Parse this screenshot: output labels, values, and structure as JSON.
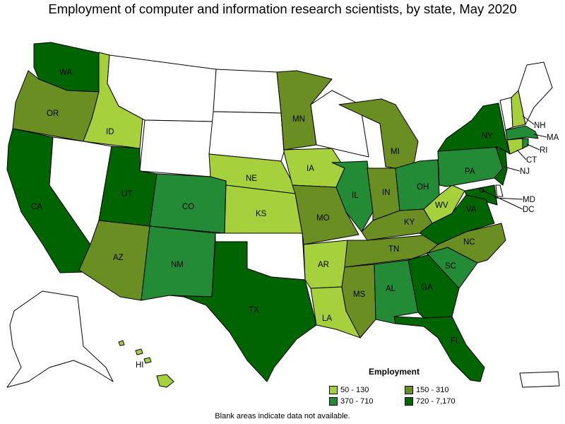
{
  "title": "Employment of computer and information research scientists, by state, May 2020",
  "note": "Blank areas indicate data not available.",
  "legend": {
    "title": "Employment",
    "items": [
      {
        "label": "50 - 130",
        "color": "#a6d13c"
      },
      {
        "label": "150 - 310",
        "color": "#6b8e23"
      },
      {
        "label": "370 - 710",
        "color": "#238b35"
      },
      {
        "label": "720 - 7,170",
        "color": "#006400"
      }
    ]
  },
  "colors": {
    "none": "#ffffff",
    "low": "#a6d13c",
    "midlow": "#6b8e23",
    "midhigh": "#238b35",
    "high": "#006400"
  },
  "states": [
    {
      "abbr": "WA",
      "bin": "high"
    },
    {
      "abbr": "OR",
      "bin": "midlow"
    },
    {
      "abbr": "CA",
      "bin": "high"
    },
    {
      "abbr": "ID",
      "bin": "low"
    },
    {
      "abbr": "NV",
      "bin": "none"
    },
    {
      "abbr": "MT",
      "bin": "none"
    },
    {
      "abbr": "WY",
      "bin": "none"
    },
    {
      "abbr": "UT",
      "bin": "high"
    },
    {
      "abbr": "AZ",
      "bin": "midlow"
    },
    {
      "abbr": "CO",
      "bin": "midhigh"
    },
    {
      "abbr": "NM",
      "bin": "midhigh"
    },
    {
      "abbr": "ND",
      "bin": "none"
    },
    {
      "abbr": "SD",
      "bin": "none"
    },
    {
      "abbr": "NE",
      "bin": "low"
    },
    {
      "abbr": "KS",
      "bin": "low"
    },
    {
      "abbr": "OK",
      "bin": "none"
    },
    {
      "abbr": "TX",
      "bin": "high"
    },
    {
      "abbr": "MN",
      "bin": "midlow"
    },
    {
      "abbr": "IA",
      "bin": "low"
    },
    {
      "abbr": "MO",
      "bin": "midlow"
    },
    {
      "abbr": "AR",
      "bin": "low"
    },
    {
      "abbr": "LA",
      "bin": "low"
    },
    {
      "abbr": "WI",
      "bin": "none"
    },
    {
      "abbr": "IL",
      "bin": "midhigh"
    },
    {
      "abbr": "MI",
      "bin": "midlow"
    },
    {
      "abbr": "IN",
      "bin": "midlow"
    },
    {
      "abbr": "OH",
      "bin": "midhigh"
    },
    {
      "abbr": "KY",
      "bin": "midlow"
    },
    {
      "abbr": "TN",
      "bin": "midlow"
    },
    {
      "abbr": "MS",
      "bin": "midlow"
    },
    {
      "abbr": "AL",
      "bin": "midhigh"
    },
    {
      "abbr": "GA",
      "bin": "high"
    },
    {
      "abbr": "FL",
      "bin": "high"
    },
    {
      "abbr": "SC",
      "bin": "midhigh"
    },
    {
      "abbr": "NC",
      "bin": "midlow"
    },
    {
      "abbr": "VA",
      "bin": "high"
    },
    {
      "abbr": "WV",
      "bin": "low"
    },
    {
      "abbr": "PA",
      "bin": "midhigh"
    },
    {
      "abbr": "NY",
      "bin": "high"
    },
    {
      "abbr": "VT",
      "bin": "none"
    },
    {
      "abbr": "NH",
      "bin": "low"
    },
    {
      "abbr": "ME",
      "bin": "none"
    },
    {
      "abbr": "MA",
      "bin": "midhigh"
    },
    {
      "abbr": "RI",
      "bin": "midhigh"
    },
    {
      "abbr": "CT",
      "bin": "low"
    },
    {
      "abbr": "NJ",
      "bin": "high"
    },
    {
      "abbr": "DE",
      "bin": "none"
    },
    {
      "abbr": "MD",
      "bin": "high"
    },
    {
      "abbr": "DC",
      "bin": "high"
    },
    {
      "abbr": "AK",
      "bin": "none"
    },
    {
      "abbr": "HI",
      "bin": "low"
    },
    {
      "abbr": "PR",
      "bin": "none"
    }
  ]
}
